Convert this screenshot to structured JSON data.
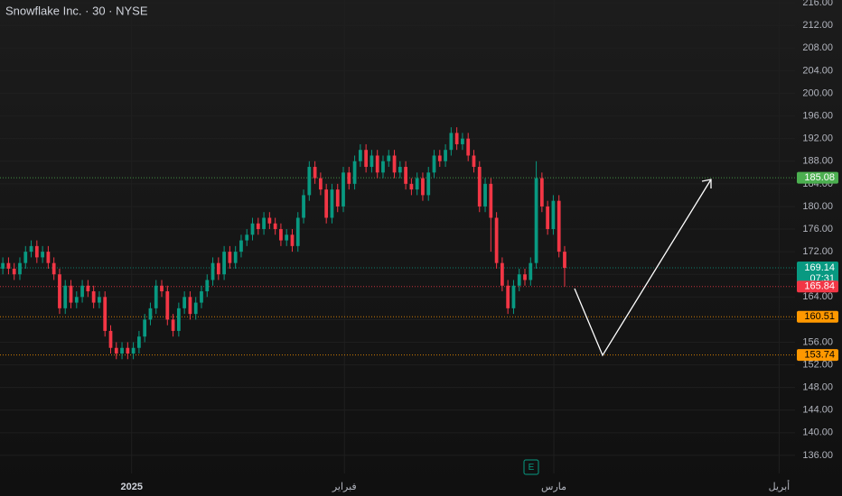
{
  "chart_data": {
    "type": "candlestick",
    "title": "Snowflake Inc. · 30 · NYSE",
    "earnings_marker": "E",
    "up_color": "#089981",
    "down_color": "#f23645",
    "xlim": [
      -0.5,
      139.6
    ],
    "xticks": [
      {
        "value": 22.7,
        "label": "2025"
      },
      {
        "value": 60.2,
        "label": "فبراير"
      },
      {
        "value": 97.1,
        "label": "مارس"
      },
      {
        "value": 136.8,
        "label": "أبريل"
      }
    ],
    "ylim": [
      132.8,
      216.5
    ],
    "yticks": [
      {
        "value": 136,
        "label": "136.00"
      },
      {
        "value": 140,
        "label": "140.00"
      },
      {
        "value": 144,
        "label": "144.00"
      },
      {
        "value": 148,
        "label": "148.00"
      },
      {
        "value": 152,
        "label": "152.00"
      },
      {
        "value": 156,
        "label": "156.00"
      },
      {
        "value": 160,
        "label": "160.00"
      },
      {
        "value": 164,
        "label": "164.00"
      },
      {
        "value": 168,
        "label": "168.00"
      },
      {
        "value": 172,
        "label": "172.00"
      },
      {
        "value": 176,
        "label": "176.00"
      },
      {
        "value": 180,
        "label": "180.00"
      },
      {
        "value": 184,
        "label": "184.00"
      },
      {
        "value": 188,
        "label": "188.00"
      },
      {
        "value": 192,
        "label": "192.00"
      },
      {
        "value": 196,
        "label": "196.00"
      },
      {
        "value": 200,
        "label": "200.00"
      },
      {
        "value": 204,
        "label": "204.00"
      },
      {
        "value": 208,
        "label": "208.00"
      },
      {
        "value": 212,
        "label": "212.00"
      },
      {
        "value": 216,
        "label": "216.00"
      }
    ],
    "grid": true,
    "open": [
      169,
      170,
      169,
      168,
      170,
      172,
      173,
      171,
      172,
      170,
      168,
      162,
      166,
      163,
      164,
      166,
      165,
      163,
      164,
      158,
      155,
      154,
      155,
      154,
      155,
      157,
      160,
      162,
      166,
      165,
      160,
      158,
      162,
      164,
      161,
      163,
      165,
      167,
      170,
      168,
      172,
      170,
      172,
      174,
      175,
      177,
      176,
      178,
      177,
      176,
      174,
      175,
      173,
      178,
      182,
      187,
      185,
      183,
      178,
      183,
      180,
      186,
      184,
      188,
      190,
      187,
      189,
      186,
      188,
      189,
      186,
      187,
      184,
      183,
      185,
      182,
      186,
      189,
      188,
      190,
      193,
      191,
      192,
      189,
      187,
      180,
      184,
      178,
      170,
      166,
      162,
      166,
      168,
      167,
      170,
      185,
      180,
      176,
      181,
      172
    ],
    "high": [
      171,
      171,
      170,
      171,
      173,
      174,
      174,
      173,
      173,
      171,
      169,
      167,
      167,
      165,
      167,
      167,
      166,
      165,
      165,
      159,
      156,
      156,
      156,
      156,
      158,
      161,
      163,
      167,
      167,
      166,
      161,
      163,
      165,
      165,
      164,
      166,
      168,
      171,
      171,
      173,
      173,
      173,
      175,
      176,
      178,
      178,
      179,
      179,
      178,
      177,
      176,
      176,
      179,
      183,
      188,
      188,
      186,
      184,
      184,
      184,
      187,
      187,
      189,
      191,
      191,
      190,
      190,
      189,
      190,
      190,
      188,
      188,
      185,
      186,
      186,
      187,
      190,
      190,
      191,
      194,
      194,
      193,
      193,
      190,
      188,
      185,
      185,
      179,
      171,
      167,
      167,
      169,
      169,
      171,
      188,
      186,
      181,
      182,
      182,
      173
    ],
    "low": [
      168,
      168,
      167,
      167,
      169,
      171,
      170,
      170,
      169,
      167,
      161,
      161,
      162,
      162,
      163,
      164,
      162,
      162,
      157,
      154,
      153,
      153,
      153,
      153,
      154,
      156,
      159,
      161,
      164,
      159,
      157,
      157,
      161,
      160,
      160,
      162,
      164,
      166,
      167,
      167,
      169,
      169,
      171,
      173,
      174,
      175,
      175,
      176,
      175,
      173,
      173,
      172,
      172,
      177,
      181,
      184,
      182,
      177,
      177,
      179,
      179,
      183,
      183,
      187,
      186,
      186,
      185,
      185,
      187,
      185,
      185,
      183,
      182,
      182,
      181,
      181,
      185,
      187,
      187,
      189,
      190,
      190,
      188,
      186,
      179,
      179,
      172,
      169,
      165,
      161,
      161,
      165,
      166,
      166,
      169,
      179,
      175,
      175,
      171,
      165.84
    ],
    "close": [
      170,
      169,
      168,
      170,
      172,
      173,
      171,
      172,
      170,
      168,
      162,
      166,
      163,
      164,
      166,
      165,
      163,
      164,
      158,
      155,
      154,
      155,
      154,
      155,
      157,
      160,
      162,
      166,
      165,
      160,
      158,
      162,
      164,
      161,
      163,
      165,
      167,
      170,
      168,
      172,
      170,
      172,
      174,
      175,
      177,
      176,
      178,
      177,
      176,
      174,
      175,
      173,
      178,
      182,
      187,
      185,
      183,
      178,
      183,
      180,
      186,
      184,
      188,
      190,
      187,
      189,
      186,
      188,
      189,
      186,
      187,
      184,
      183,
      185,
      182,
      186,
      189,
      188,
      190,
      193,
      191,
      192,
      189,
      187,
      180,
      184,
      178,
      170,
      166,
      162,
      166,
      168,
      167,
      170,
      185,
      180,
      176,
      181,
      172,
      169.14
    ],
    "price_lines": [
      {
        "value": 185.08,
        "color": "#4caf50"
      },
      {
        "value": 169.14,
        "color": "#089981",
        "countdown": "07:31"
      },
      {
        "value": 165.84,
        "color": "#f23645"
      },
      {
        "value": 160.51,
        "color": "#ff9800"
      },
      {
        "value": 153.74,
        "color": "#ff9800"
      }
    ]
  }
}
